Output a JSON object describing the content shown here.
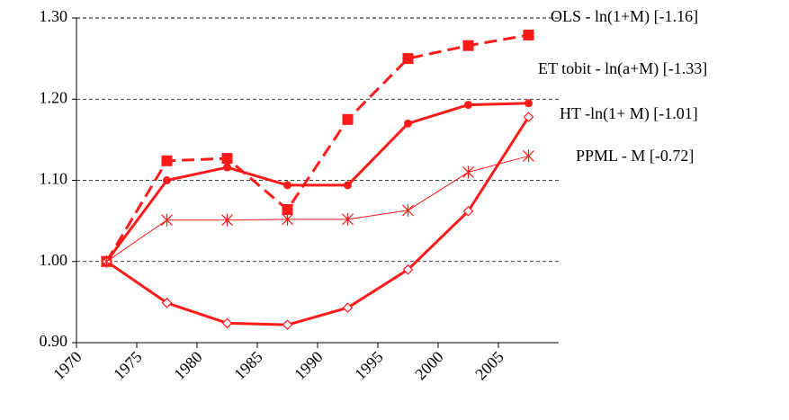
{
  "chart_data": {
    "type": "line",
    "x": [
      1972.5,
      1977.5,
      1982.5,
      1987.5,
      1992.5,
      1997.5,
      2002.5,
      2007.5
    ],
    "xlim": [
      1970,
      2010
    ],
    "xticks": [
      1970,
      1975,
      1980,
      1985,
      1990,
      1995,
      2000,
      2005
    ],
    "ylim": [
      0.9,
      1.3
    ],
    "yticks": [
      {
        "value": 0.9,
        "label": "0.90"
      },
      {
        "value": 1.0,
        "label": "1.00"
      },
      {
        "value": 1.1,
        "label": "1.10"
      },
      {
        "value": 1.2,
        "label": "1.20"
      },
      {
        "value": 1.3,
        "label": "1.30"
      }
    ],
    "grid": true,
    "series": [
      {
        "name": "OLS - ln(1+M) [-1.16]",
        "color": "#ff1a1a",
        "marker": "square",
        "line_style": "dashed",
        "line_width": 3,
        "values": [
          1.0,
          1.124,
          1.127,
          1.064,
          1.175,
          1.25,
          1.266,
          1.279
        ]
      },
      {
        "name": "ET tobit - ln(a+M) [-1.33]",
        "color": "#ff1a1a",
        "marker": "circle",
        "line_style": "solid",
        "line_width": 3,
        "values": [
          1.0,
          1.1,
          1.116,
          1.094,
          1.094,
          1.17,
          1.193,
          1.195
        ]
      },
      {
        "name": "HT -ln(1+ M) [-1.01]",
        "color": "#ff1a1a",
        "marker": "diamond",
        "line_style": "solid",
        "line_width": 3,
        "values": [
          1.0,
          0.949,
          0.924,
          0.922,
          0.943,
          0.99,
          1.062,
          1.178
        ]
      },
      {
        "name": "PPML - M [-0.72]",
        "color": "#ff1a1a",
        "marker": "asterisk",
        "line_style": "solid",
        "line_width": 1,
        "values": [
          1.0,
          1.051,
          1.051,
          1.052,
          1.052,
          1.063,
          1.11,
          1.13
        ]
      }
    ]
  }
}
